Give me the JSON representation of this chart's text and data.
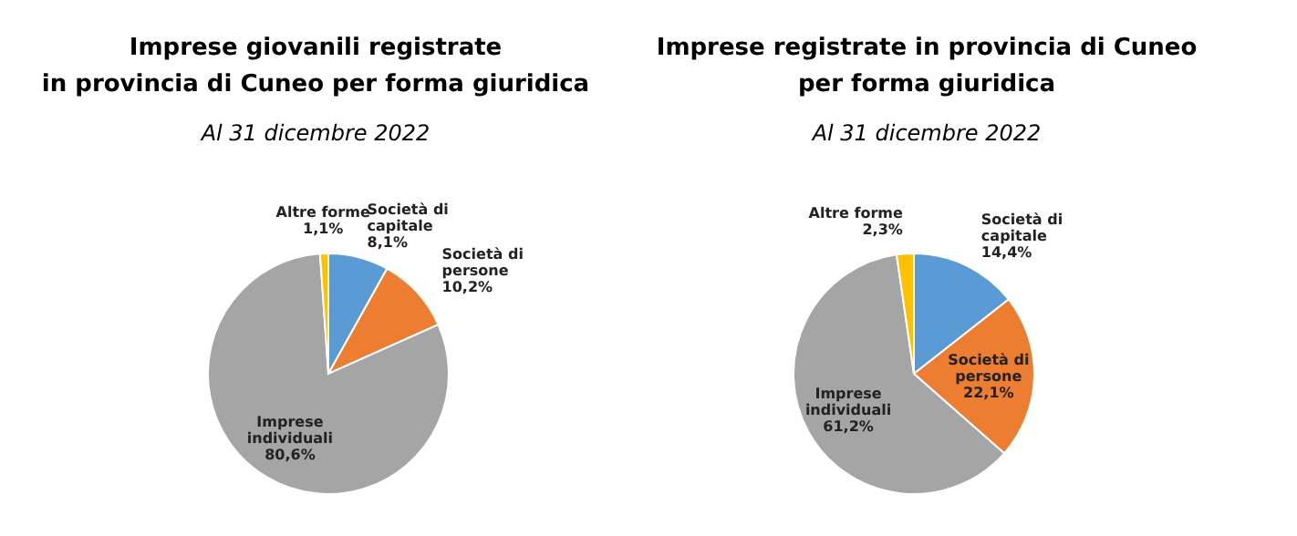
{
  "chart_data": [
    {
      "type": "pie",
      "title": "Imprese giovanili registrate\nin provincia di Cuneo per forma giuridica",
      "subtitle": "Al 31 dicembre 2022",
      "categories": [
        "Società di capitale",
        "Società di persone",
        "Imprese individuali",
        "Altre forme"
      ],
      "values": [
        8.1,
        10.2,
        80.6,
        1.1
      ],
      "colors": [
        "#5b9bd5",
        "#ed7d31",
        "#a5a5a5",
        "#ffc000"
      ],
      "value_labels": [
        "8,1%",
        "10,2%",
        "80,6%",
        "1,1%"
      ]
    },
    {
      "type": "pie",
      "title": "Imprese registrate in provincia di Cuneo\nper forma giuridica",
      "subtitle": "Al 31 dicembre 2022",
      "categories": [
        "Società di capitale",
        "Società di persone",
        "Imprese individuali",
        "Altre forme"
      ],
      "values": [
        14.4,
        22.1,
        61.2,
        2.3
      ],
      "colors": [
        "#5b9bd5",
        "#ed7d31",
        "#a5a5a5",
        "#ffc000"
      ],
      "value_labels": [
        "14,4%",
        "22,1%",
        "61,2%",
        "2,3%"
      ]
    }
  ]
}
